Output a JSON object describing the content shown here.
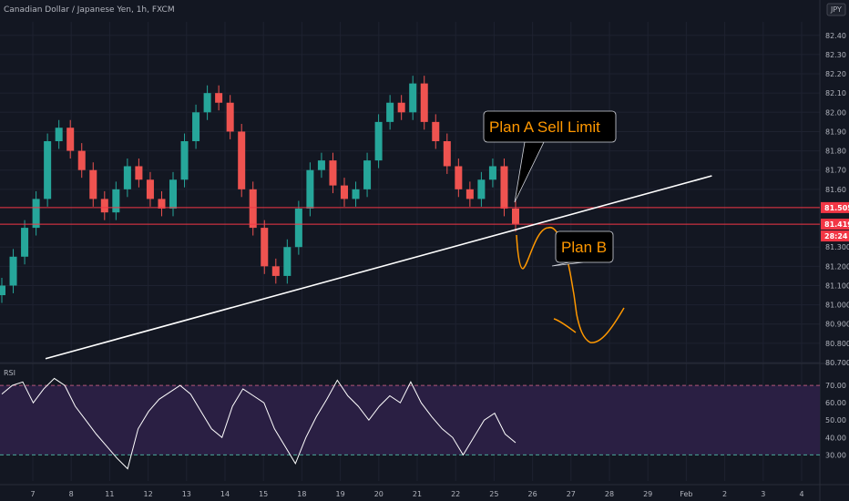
{
  "chart_data": {
    "type": "candlestick",
    "title": "Canadian Dollar / Japanese Yen, 1h, FXCM",
    "currency": "JPY",
    "price_axis": {
      "ticks": [
        "82.40",
        "82.30",
        "82.20",
        "82.10",
        "82.00",
        "81.90",
        "81.80",
        "81.70",
        "81.60",
        "81.505",
        "81.419",
        "81.300",
        "81.200",
        "81.100",
        "81.000",
        "80.900",
        "80.800",
        "80.700"
      ],
      "ylim": [
        80.7,
        82.47
      ]
    },
    "time_axis": {
      "ticks": [
        "7",
        "8",
        "11",
        "12",
        "13",
        "14",
        "15",
        "18",
        "19",
        "20",
        "21",
        "22",
        "25",
        "26",
        "27",
        "28",
        "29",
        "Feb",
        "2",
        "3",
        "4"
      ]
    },
    "price_tags": [
      {
        "label": "81.505",
        "value": 81.505,
        "color": "#f23645"
      },
      {
        "label": "81.419",
        "value": 81.419,
        "color": "#f23645"
      },
      {
        "label": "28:24",
        "value": 81.38,
        "color": "#f23645"
      }
    ],
    "horizontal_lines": [
      {
        "value": 81.505,
        "color": "#f23645"
      },
      {
        "value": 81.419,
        "color": "#f23645"
      }
    ],
    "trendline": {
      "from": {
        "day": "7",
        "price": 80.72
      },
      "to": {
        "day": "Feb",
        "price": 81.67
      },
      "color": "#ffffff"
    },
    "series": [
      {
        "name": "close",
        "values": [
          81.1,
          81.25,
          81.4,
          81.55,
          81.85,
          81.92,
          81.8,
          81.7,
          81.55,
          81.48,
          81.6,
          81.72,
          81.65,
          81.55,
          81.5,
          81.65,
          81.85,
          82.0,
          82.1,
          82.05,
          81.9,
          81.6,
          81.4,
          81.2,
          81.15,
          81.3,
          81.5,
          81.7,
          81.75,
          81.62,
          81.55,
          81.6,
          81.75,
          81.95,
          82.05,
          82.0,
          82.15,
          81.95,
          81.85,
          81.72,
          81.6,
          81.55,
          81.65,
          81.72,
          81.5,
          81.42
        ]
      }
    ],
    "rsi": {
      "label": "RSI",
      "ticks": [
        "70.00",
        "60.00",
        "50.00",
        "40.00",
        "30.00"
      ],
      "upper": 70,
      "lower": 30,
      "values": [
        65,
        70,
        72,
        60,
        68,
        74,
        70,
        58,
        50,
        42,
        35,
        28,
        22,
        45,
        55,
        62,
        66,
        70,
        65,
        55,
        45,
        40,
        58,
        68,
        64,
        60,
        45,
        35,
        25,
        40,
        52,
        62,
        73,
        64,
        58,
        50,
        58,
        64,
        60,
        72,
        60,
        52,
        45,
        40,
        30,
        40,
        50,
        54,
        42,
        37
      ]
    },
    "annotations": [
      {
        "text": "Plan A Sell Limit"
      },
      {
        "text": "Plan B"
      }
    ],
    "colors": {
      "up": "#26a69a",
      "down": "#ef5350",
      "background": "#131722",
      "rsi_fill": "#2a1f43",
      "rsi_line": "#ffffff",
      "drawing": "#ff9800"
    }
  }
}
